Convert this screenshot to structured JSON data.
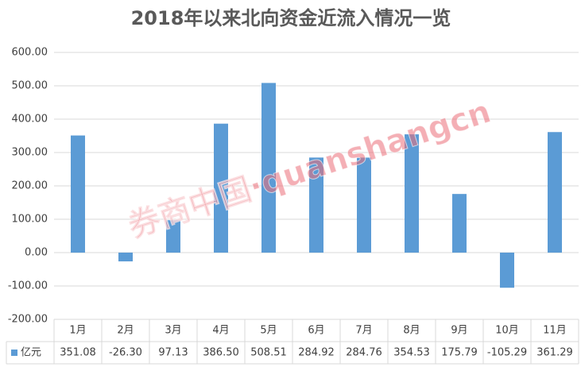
{
  "chart_data": {
    "type": "bar",
    "title": "2018年以来北向资金近流入情况一览",
    "categories": [
      "1月",
      "2月",
      "3月",
      "4月",
      "5月",
      "6月",
      "7月",
      "8月",
      "9月",
      "10月",
      "11月"
    ],
    "series": [
      {
        "name": "亿元",
        "color": "#5b9bd5",
        "values": [
          351.08,
          -26.3,
          97.13,
          386.5,
          508.51,
          284.92,
          284.76,
          354.53,
          175.79,
          -105.29,
          361.29
        ],
        "value_labels": [
          "351.08",
          "-26.30",
          "97.13",
          "386.50",
          "508.51",
          "284.92",
          "284.76",
          "354.53",
          "175.79",
          "-105.29",
          "361.29"
        ]
      }
    ],
    "ylim": [
      -200,
      600
    ],
    "yticks": [
      {
        "value": -200,
        "label": "-200.00"
      },
      {
        "value": -100,
        "label": "-100.00"
      },
      {
        "value": 0,
        "label": "0.00"
      },
      {
        "value": 100,
        "label": "100.00"
      },
      {
        "value": 200,
        "label": "200.00"
      },
      {
        "value": 300,
        "label": "300.00"
      },
      {
        "value": 400,
        "label": "400.00"
      },
      {
        "value": 500,
        "label": "500.00"
      },
      {
        "value": 600,
        "label": "600.00"
      }
    ],
    "grid": true,
    "watermark": "券商中国·quanshangcn"
  }
}
